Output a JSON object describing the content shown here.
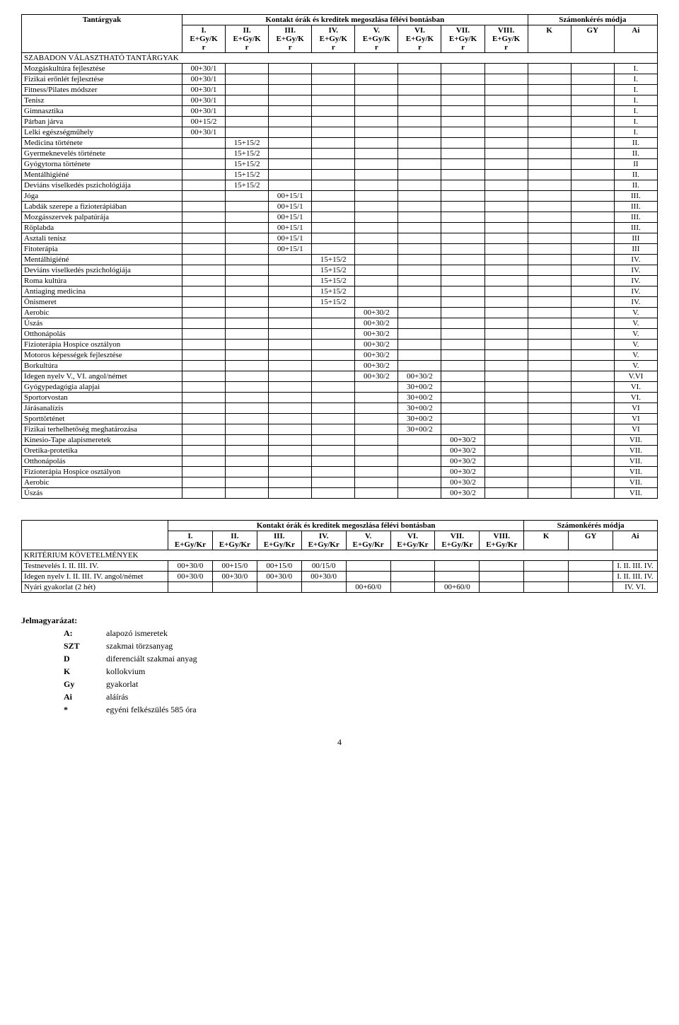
{
  "table1": {
    "header": {
      "subjects": "Tantárgyak",
      "contact_hours": "Kontakt órák és kreditek megoszlása félévi bontásban",
      "assessment": "Számonkérés módja",
      "sem_labels": [
        "I.",
        "II.",
        "III.",
        "IV.",
        "V.",
        "VI.",
        "VII.",
        "VIII."
      ],
      "sem_sub": "E+Gy/K r",
      "sem_sub_top": "E+Gy/K",
      "sem_sub_bot": "r",
      "k": "K",
      "gy": "GY",
      "ai": "Ai"
    },
    "section_label": "SZABADON VÁLASZTHATÓ TANTÁRGYAK",
    "rows": [
      {
        "name": "Mozgáskultúra fejlesztése",
        "v": [
          "00+30/1",
          "",
          "",
          "",
          "",
          "",
          "",
          ""
        ],
        "k": "",
        "gy": "",
        "ai": "I."
      },
      {
        "name": "Fizikai erőnlét fejlesztése",
        "v": [
          "00+30/1",
          "",
          "",
          "",
          "",
          "",
          "",
          ""
        ],
        "k": "",
        "gy": "",
        "ai": "I."
      },
      {
        "name": "Fitness/Pilates módszer",
        "v": [
          "00+30/1",
          "",
          "",
          "",
          "",
          "",
          "",
          ""
        ],
        "k": "",
        "gy": "",
        "ai": "I."
      },
      {
        "name": "Tenisz",
        "v": [
          "00+30/1",
          "",
          "",
          "",
          "",
          "",
          "",
          ""
        ],
        "k": "",
        "gy": "",
        "ai": "I."
      },
      {
        "name": "Gimnasztika",
        "v": [
          "00+30/1",
          "",
          "",
          "",
          "",
          "",
          "",
          ""
        ],
        "k": "",
        "gy": "",
        "ai": "I."
      },
      {
        "name": "Párban járva",
        "v": [
          "00+15/2",
          "",
          "",
          "",
          "",
          "",
          "",
          ""
        ],
        "k": "",
        "gy": "",
        "ai": "I."
      },
      {
        "name": "Lelki egészségműhely",
        "v": [
          "00+30/1",
          "",
          "",
          "",
          "",
          "",
          "",
          ""
        ],
        "k": "",
        "gy": "",
        "ai": "I."
      },
      {
        "name": "Medicina története",
        "v": [
          "",
          "15+15/2",
          "",
          "",
          "",
          "",
          "",
          ""
        ],
        "k": "",
        "gy": "",
        "ai": "II."
      },
      {
        "name": "Gyermeknevelés története",
        "v": [
          "",
          "15+15/2",
          "",
          "",
          "",
          "",
          "",
          ""
        ],
        "k": "",
        "gy": "",
        "ai": "II."
      },
      {
        "name": "Gyógytorna története",
        "v": [
          "",
          "15+15/2",
          "",
          "",
          "",
          "",
          "",
          ""
        ],
        "k": "",
        "gy": "",
        "ai": "II"
      },
      {
        "name": "Mentálhigiéné",
        "v": [
          "",
          "15+15/2",
          "",
          "",
          "",
          "",
          "",
          ""
        ],
        "k": "",
        "gy": "",
        "ai": "II."
      },
      {
        "name": "Deviáns viselkedés pszichológiája",
        "v": [
          "",
          "15+15/2",
          "",
          "",
          "",
          "",
          "",
          ""
        ],
        "k": "",
        "gy": "",
        "ai": "II."
      },
      {
        "name": "Jóga",
        "v": [
          "",
          "",
          "00+15/1",
          "",
          "",
          "",
          "",
          ""
        ],
        "k": "",
        "gy": "",
        "ai": "III."
      },
      {
        "name": "Labdák szerepe a fizioterápiában",
        "v": [
          "",
          "",
          "00+15/1",
          "",
          "",
          "",
          "",
          ""
        ],
        "k": "",
        "gy": "",
        "ai": "III."
      },
      {
        "name": "Mozgásszervek palpatúrája",
        "v": [
          "",
          "",
          "00+15/1",
          "",
          "",
          "",
          "",
          ""
        ],
        "k": "",
        "gy": "",
        "ai": "III."
      },
      {
        "name": "Röplabda",
        "v": [
          "",
          "",
          "00+15/1",
          "",
          "",
          "",
          "",
          ""
        ],
        "k": "",
        "gy": "",
        "ai": "III."
      },
      {
        "name": "Asztali tenisz",
        "v": [
          "",
          "",
          "00+15/1",
          "",
          "",
          "",
          "",
          ""
        ],
        "k": "",
        "gy": "",
        "ai": "III"
      },
      {
        "name": "Fitoterápia",
        "v": [
          "",
          "",
          "00+15/1",
          "",
          "",
          "",
          "",
          ""
        ],
        "k": "",
        "gy": "",
        "ai": "III"
      },
      {
        "name": "Mentálhigiéné",
        "v": [
          "",
          "",
          "",
          "15+15/2",
          "",
          "",
          "",
          ""
        ],
        "k": "",
        "gy": "",
        "ai": "IV."
      },
      {
        "name": "Deviáns viselkedés pszichológiája",
        "v": [
          "",
          "",
          "",
          "15+15/2",
          "",
          "",
          "",
          ""
        ],
        "k": "",
        "gy": "",
        "ai": "IV."
      },
      {
        "name": "Roma kultúra",
        "v": [
          "",
          "",
          "",
          "15+15/2",
          "",
          "",
          "",
          ""
        ],
        "k": "",
        "gy": "",
        "ai": "IV."
      },
      {
        "name": "Antiaging medicina",
        "v": [
          "",
          "",
          "",
          "15+15/2",
          "",
          "",
          "",
          ""
        ],
        "k": "",
        "gy": "",
        "ai": "IV."
      },
      {
        "name": "Önismeret",
        "v": [
          "",
          "",
          "",
          "15+15/2",
          "",
          "",
          "",
          ""
        ],
        "k": "",
        "gy": "",
        "ai": "IV."
      },
      {
        "name": "Aerobic",
        "v": [
          "",
          "",
          "",
          "",
          "00+30/2",
          "",
          "",
          ""
        ],
        "k": "",
        "gy": "",
        "ai": "V."
      },
      {
        "name": "Úszás",
        "v": [
          "",
          "",
          "",
          "",
          "00+30/2",
          "",
          "",
          ""
        ],
        "k": "",
        "gy": "",
        "ai": "V."
      },
      {
        "name": "Otthonápolás",
        "v": [
          "",
          "",
          "",
          "",
          "00+30/2",
          "",
          "",
          ""
        ],
        "k": "",
        "gy": "",
        "ai": "V."
      },
      {
        "name": "Fizioterápia Hospice osztályon",
        "v": [
          "",
          "",
          "",
          "",
          "00+30/2",
          "",
          "",
          ""
        ],
        "k": "",
        "gy": "",
        "ai": "V."
      },
      {
        "name": "Motoros képességek fejlesztése",
        "v": [
          "",
          "",
          "",
          "",
          "00+30/2",
          "",
          "",
          ""
        ],
        "k": "",
        "gy": "",
        "ai": "V."
      },
      {
        "name": "Borkultúra",
        "v": [
          "",
          "",
          "",
          "",
          "00+30/2",
          "",
          "",
          ""
        ],
        "k": "",
        "gy": "",
        "ai": "V."
      },
      {
        "name": "Idegen nyelv V., VI. angol/német",
        "v": [
          "",
          "",
          "",
          "",
          "00+30/2",
          "00+30/2",
          "",
          ""
        ],
        "k": "",
        "gy": "",
        "ai": "V.VI"
      },
      {
        "name": "Gyógypedagógia alapjai",
        "v": [
          "",
          "",
          "",
          "",
          "",
          "30+00/2",
          "",
          ""
        ],
        "k": "",
        "gy": "",
        "ai": "VI."
      },
      {
        "name": "Sportorvostan",
        "v": [
          "",
          "",
          "",
          "",
          "",
          "30+00/2",
          "",
          ""
        ],
        "k": "",
        "gy": "",
        "ai": "VI."
      },
      {
        "name": "Járásanalízis",
        "v": [
          "",
          "",
          "",
          "",
          "",
          "30+00/2",
          "",
          ""
        ],
        "k": "",
        "gy": "",
        "ai": "VI"
      },
      {
        "name": "Sporttörténet",
        "v": [
          "",
          "",
          "",
          "",
          "",
          "30+00/2",
          "",
          ""
        ],
        "k": "",
        "gy": "",
        "ai": "VI"
      },
      {
        "name": "Fizikai terhelhetőség meghatározása",
        "v": [
          "",
          "",
          "",
          "",
          "",
          "30+00/2",
          "",
          ""
        ],
        "k": "",
        "gy": "",
        "ai": "VI"
      },
      {
        "name": "Kinesio-Tape alapismeretek",
        "v": [
          "",
          "",
          "",
          "",
          "",
          "",
          "00+30/2",
          ""
        ],
        "k": "",
        "gy": "",
        "ai": "VII."
      },
      {
        "name": "Oretika-protetika",
        "v": [
          "",
          "",
          "",
          "",
          "",
          "",
          "00+30/2",
          ""
        ],
        "k": "",
        "gy": "",
        "ai": "VII."
      },
      {
        "name": "Otthonápolás",
        "v": [
          "",
          "",
          "",
          "",
          "",
          "",
          "00+30/2",
          ""
        ],
        "k": "",
        "gy": "",
        "ai": "VII."
      },
      {
        "name": "Fizioterápia Hospice osztályon",
        "v": [
          "",
          "",
          "",
          "",
          "",
          "",
          "00+30/2",
          ""
        ],
        "k": "",
        "gy": "",
        "ai": "VII."
      },
      {
        "name": "Aerobic",
        "v": [
          "",
          "",
          "",
          "",
          "",
          "",
          "00+30/2",
          ""
        ],
        "k": "",
        "gy": "",
        "ai": "VII."
      },
      {
        "name": "Úszás",
        "v": [
          "",
          "",
          "",
          "",
          "",
          "",
          "00+30/2",
          ""
        ],
        "k": "",
        "gy": "",
        "ai": "VII."
      }
    ]
  },
  "table2": {
    "header": {
      "contact_hours": "Kontakt órák és kreditek megoszlása félévi bontásban",
      "assessment": "Számonkérés módja",
      "sem_labels": [
        "I.",
        "II.",
        "III.",
        "IV.",
        "V.",
        "VI.",
        "VII.",
        "VIII."
      ],
      "sem_sub": "E+Gy/Kr",
      "k": "K",
      "gy": "GY",
      "ai": "Ai"
    },
    "section_label": "KRITÉRIUM KÖVETELMÉNYEK",
    "rows": [
      {
        "name": "Testnevelés I. II. III. IV.",
        "v": [
          "00+30/0",
          "00+15/0",
          "00+15/0",
          "00/15/0",
          "",
          "",
          "",
          ""
        ],
        "k": "",
        "gy": "",
        "ai": "I. II. III. IV."
      },
      {
        "name": "Idegen nyelv I. II. III. IV. angol/német",
        "v": [
          "00+30/0",
          "00+30/0",
          "00+30/0",
          "00+30/0",
          "",
          "",
          "",
          ""
        ],
        "k": "",
        "gy": "",
        "ai": "I. II. III. IV."
      },
      {
        "name": "Nyári gyakorlat (2 hét)",
        "v": [
          "",
          "",
          "",
          "",
          "00+60/0",
          "",
          "00+60/0",
          ""
        ],
        "k": "",
        "gy": "",
        "ai": "IV. VI."
      }
    ]
  },
  "legend": {
    "title": "Jelmagyarázat:",
    "items": [
      {
        "key": "A:",
        "text": "alapozó ismeretek"
      },
      {
        "key": "SZT",
        "text": "szakmai törzsanyag"
      },
      {
        "key": "D",
        "text": "diferenciált szakmai anyag"
      },
      {
        "key": "K",
        "text": "kollokvium"
      },
      {
        "key": "Gy",
        "text": "gyakorlat"
      },
      {
        "key": "Ai",
        "text": "aláírás"
      },
      {
        "key": "*",
        "text": "egyéni felkészülés 585 óra"
      }
    ]
  },
  "page_number": "4"
}
